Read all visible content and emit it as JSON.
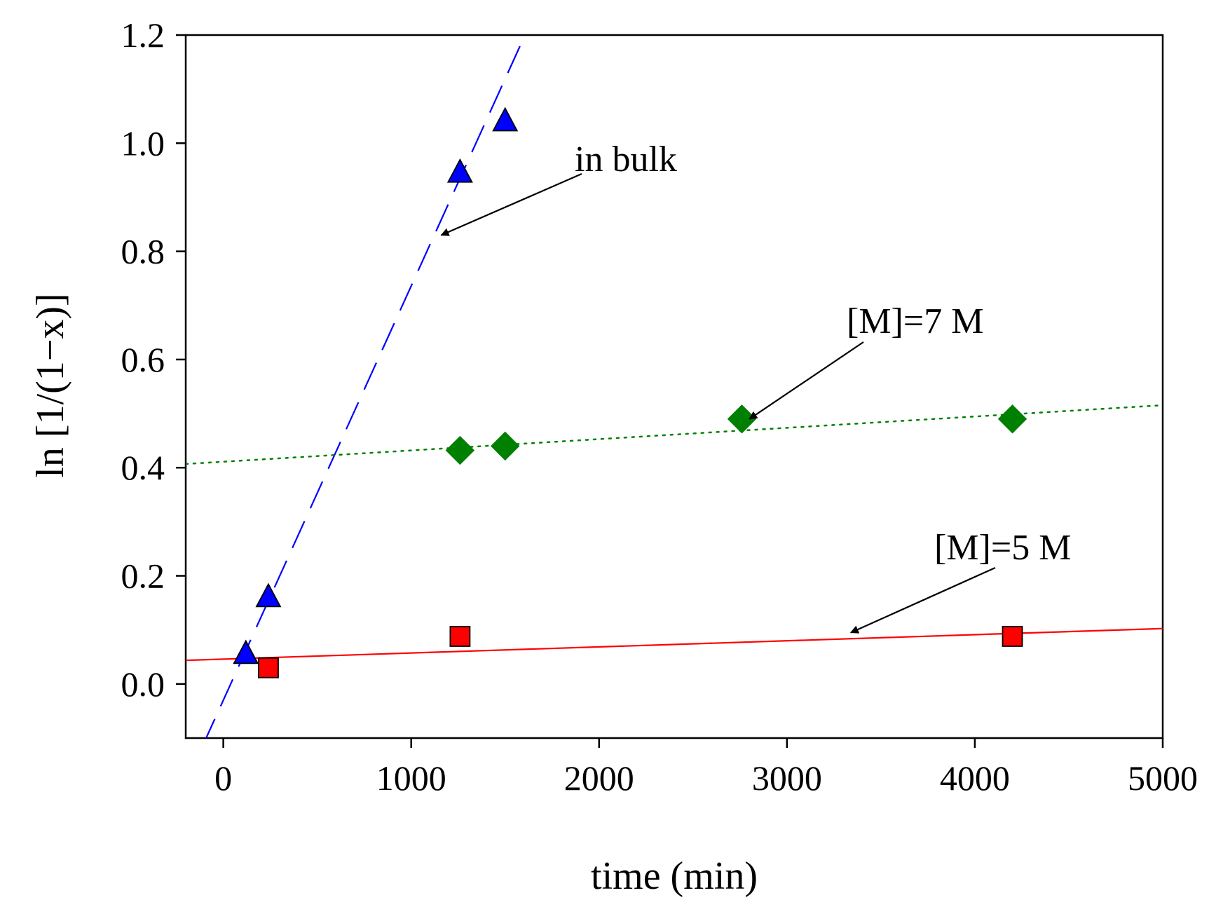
{
  "chart_data": {
    "type": "scatter",
    "title": "",
    "xlabel": "time (min)",
    "ylabel": "ln [1/(1−x)]",
    "xlim": [
      -200,
      5000
    ],
    "ylim": [
      -0.1,
      1.2
    ],
    "xticks": [
      0,
      1000,
      2000,
      3000,
      4000,
      5000
    ],
    "xtick_labels": [
      "0",
      "1000",
      "2000",
      "3000",
      "4000",
      "5000"
    ],
    "yticks": [
      0.0,
      0.2,
      0.4,
      0.6,
      0.8,
      1.0,
      1.2
    ],
    "ytick_labels": [
      "0.0",
      "0.2",
      "0.4",
      "0.6",
      "0.8",
      "1.0",
      "1.2"
    ],
    "grid": false,
    "series": [
      {
        "name": "in bulk",
        "marker": "triangle",
        "color": "#0000ff",
        "points": [
          [
            120,
            0.055
          ],
          [
            240,
            0.16
          ],
          [
            1260,
            0.945
          ],
          [
            1500,
            1.04
          ]
        ],
        "fit": {
          "style": "dashed",
          "color": "#0000ff",
          "slope": 0.000766,
          "intercept": -0.03,
          "x_range": [
            -110,
            1700
          ]
        }
      },
      {
        "name": "[M]=7 M",
        "marker": "diamond",
        "color": "#008000",
        "points": [
          [
            1260,
            0.432
          ],
          [
            1500,
            0.44
          ],
          [
            2760,
            0.49
          ],
          [
            4200,
            0.49
          ]
        ],
        "fit": {
          "style": "dotted",
          "color": "#008000",
          "slope": 2.09e-05,
          "intercept": 0.411,
          "x_range": [
            -200,
            5000
          ]
        }
      },
      {
        "name": "[M]=5 M",
        "marker": "square",
        "color": "#ff0000",
        "points": [
          [
            240,
            0.03
          ],
          [
            1260,
            0.088
          ],
          [
            4200,
            0.088
          ]
        ],
        "fit": {
          "style": "solid",
          "color": "#ff0000",
          "slope": 1.13e-05,
          "intercept": 0.046,
          "x_range": [
            -200,
            5000
          ]
        }
      }
    ],
    "annotations": [
      {
        "text": "in bulk",
        "arrow_to": [
          1160,
          0.83
        ]
      },
      {
        "text": "[M]=7 M",
        "arrow_to": [
          2800,
          0.49
        ]
      },
      {
        "text": "[M]=5 M",
        "arrow_to": [
          3340,
          0.095
        ]
      }
    ]
  }
}
